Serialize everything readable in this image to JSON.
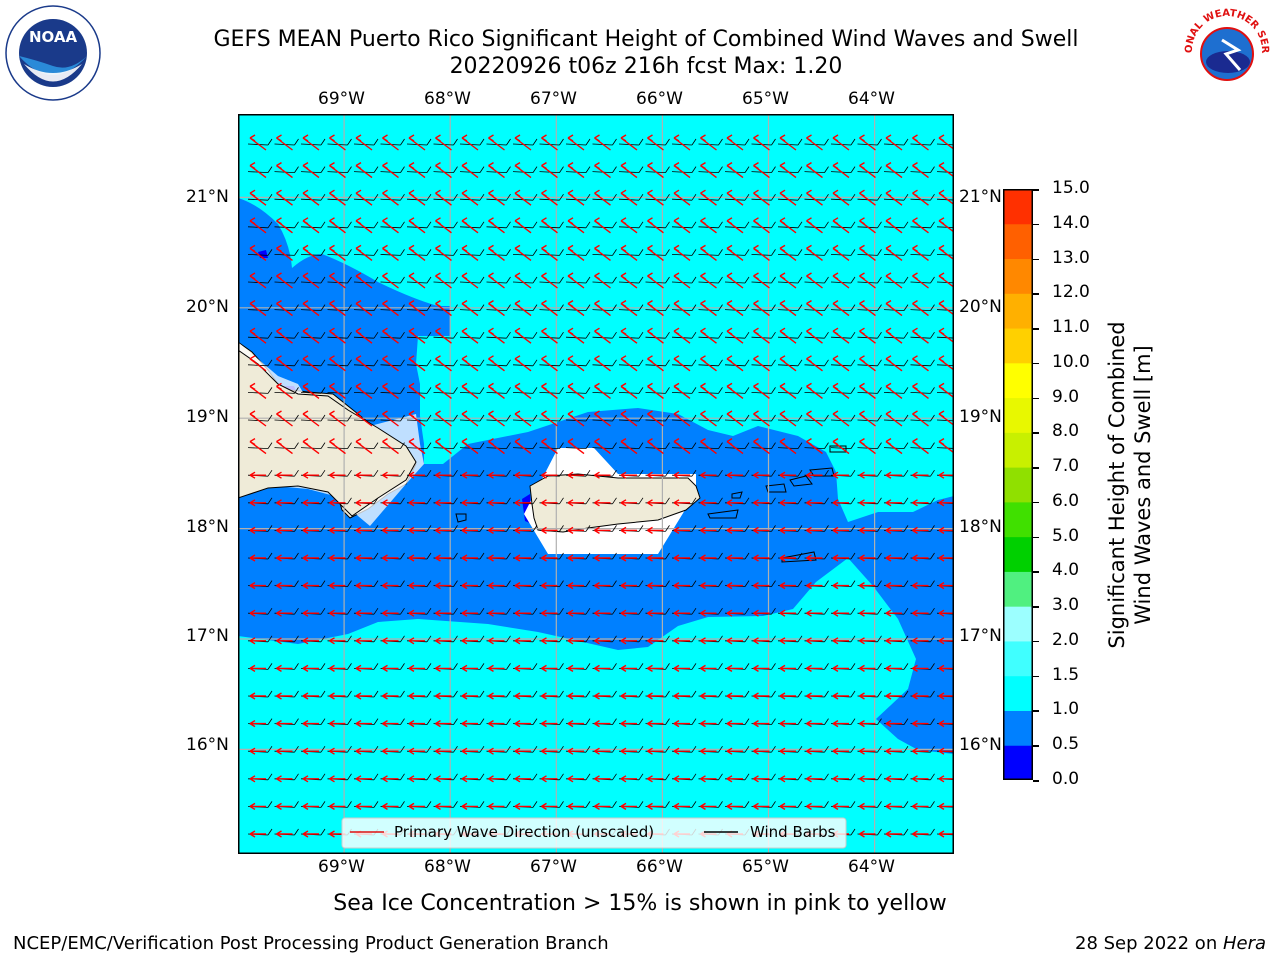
{
  "title": {
    "line1": "GEFS MEAN Puerto Rico Significant Height of Combined Wind Waves and Swell",
    "line2": "20220926 t06z 216h fcst   Max: 1.20"
  },
  "logos": {
    "left": "NOAA",
    "left_ring": "NATIONAL OCEANIC AND ATMOSPHERIC ADMINISTRATION · U.S. DEPARTMENT OF COMMERCE",
    "right": "NATIONAL WEATHER SERVICE"
  },
  "map": {
    "lon_labels": [
      "69°W",
      "68°W",
      "67°W",
      "66°W",
      "65°W",
      "64°W"
    ],
    "lat_labels": [
      "21°N",
      "20°N",
      "19°N",
      "18°N",
      "17°N",
      "16°N"
    ],
    "extent": {
      "lon": [
        -70.0,
        -63.25
      ],
      "lat": [
        15.1,
        21.8
      ]
    },
    "legend": {
      "primary_wave": "Primary Wave Direction (unscaled)",
      "wind_barbs": "Wind Barbs"
    },
    "colors": {
      "ocean_low": "#00ffff",
      "ocean_mid": "#0080ff",
      "ocean_min": "#0000ff",
      "land": "#efebd8",
      "arrow": "#ff0000"
    }
  },
  "colorbar": {
    "label_line1": "Significant Height of Combined",
    "label_line2": "Wind Waves and Swell [m]",
    "ticks": [
      "0.0",
      "0.5",
      "1.0",
      "1.5",
      "2.0",
      "3.0",
      "4.0",
      "5.0",
      "6.0",
      "7.0",
      "8.0",
      "9.0",
      "10.0",
      "11.0",
      "12.0",
      "13.0",
      "14.0",
      "15.0"
    ],
    "colors": [
      "#0000ff",
      "#0080ff",
      "#00ffff",
      "#40ffff",
      "#9cffff",
      "#50f080",
      "#00d000",
      "#40e000",
      "#90e000",
      "#c8f000",
      "#e8f800",
      "#ffff00",
      "#ffd000",
      "#ffb000",
      "#ff8800",
      "#ff6000",
      "#ff3000",
      "#ff0000"
    ]
  },
  "notes": {
    "sea_ice": "Sea Ice Concentration > 15% is shown in pink to yellow",
    "branch": "NCEP/EMC/Verification Post Processing Product Generation Branch",
    "date_prefix": "28 Sep 2022 on ",
    "date_host": "Hera"
  }
}
